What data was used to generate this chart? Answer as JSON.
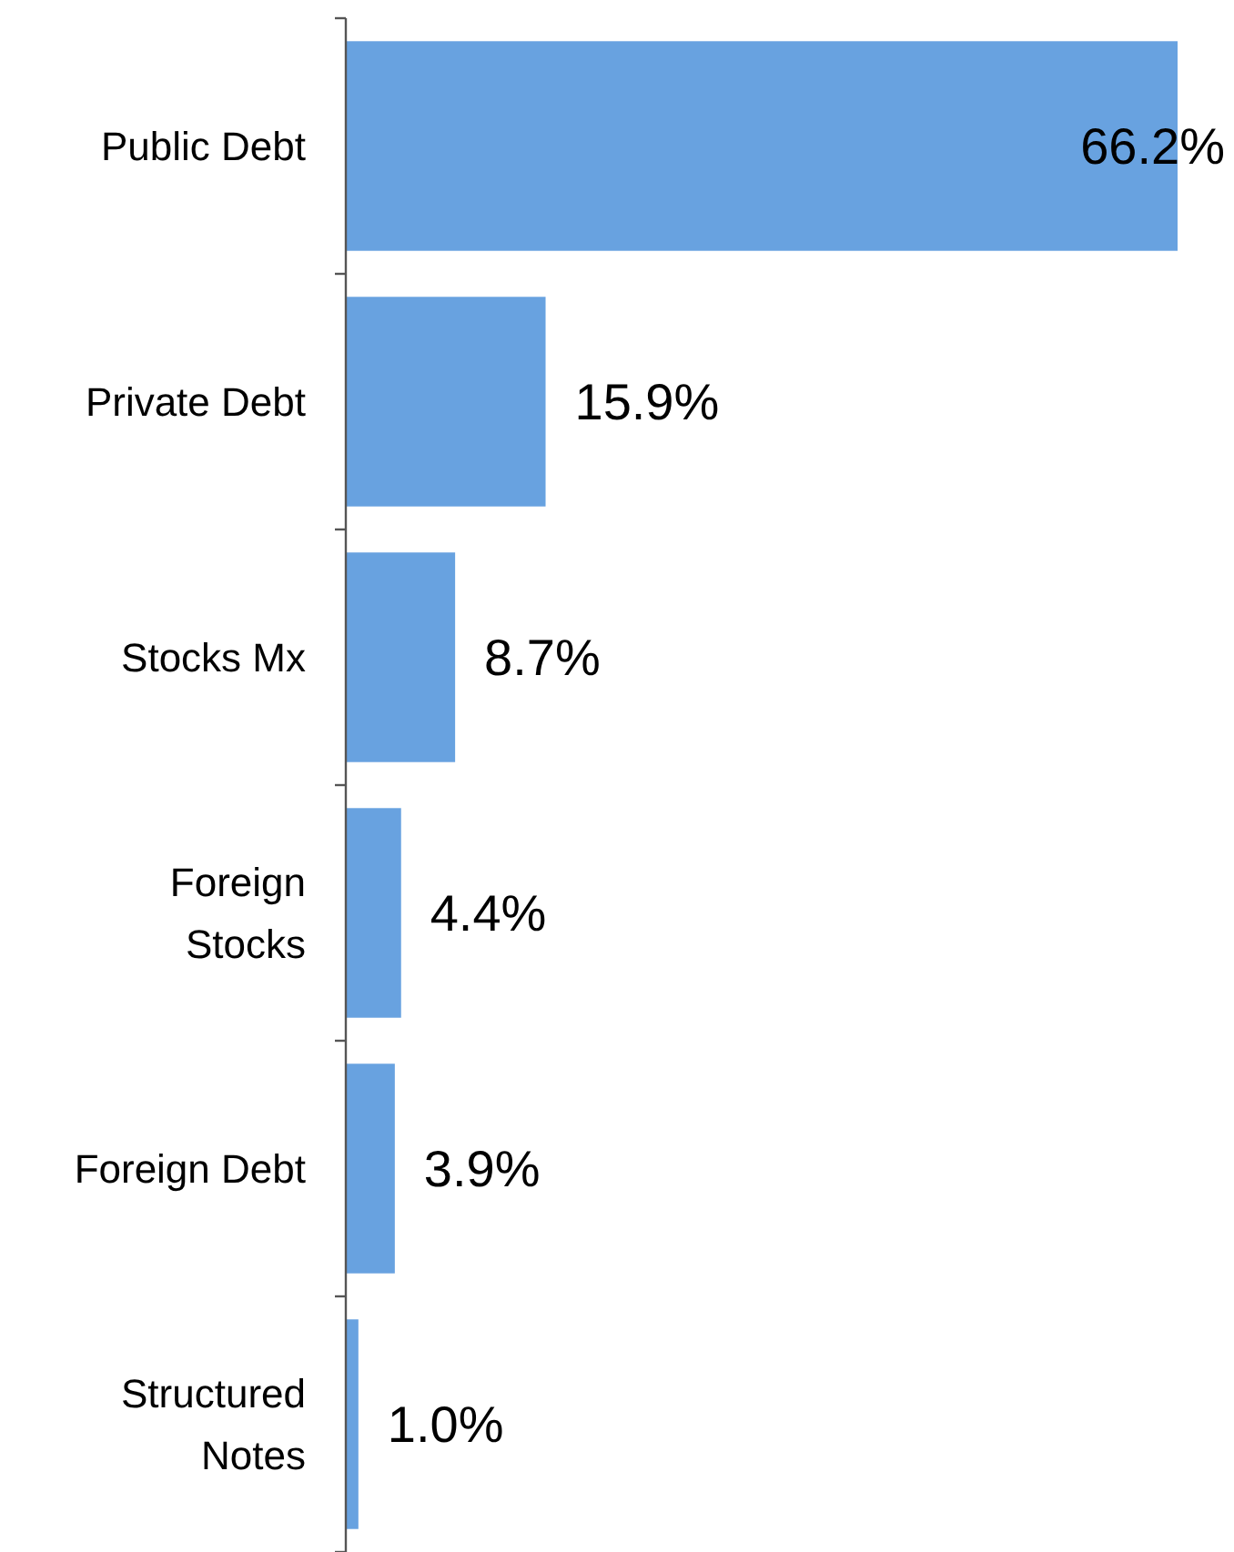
{
  "chart_data": {
    "type": "bar",
    "orientation": "horizontal",
    "categories": [
      "Public Debt",
      "Private Debt",
      "Stocks Mx",
      "Foreign Stocks",
      "Foreign Debt",
      "Structured Notes"
    ],
    "values": [
      66.2,
      15.9,
      8.7,
      4.4,
      3.9,
      1.0
    ],
    "value_labels": [
      "66.2%",
      "15.9%",
      "8.7%",
      "4.4%",
      "3.9%",
      "1.0%"
    ],
    "color": "#68a2e0"
  }
}
